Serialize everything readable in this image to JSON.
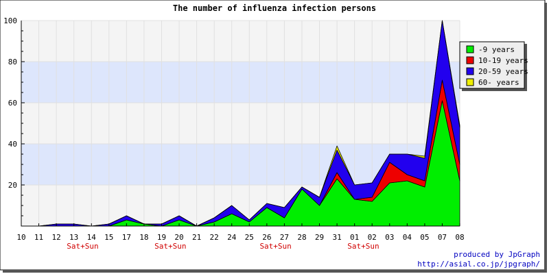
{
  "chart_data": {
    "type": "area",
    "stacked": true,
    "title": "The number of influenza infection persons",
    "categories": [
      "10",
      "11",
      "12",
      "13",
      "14",
      "15",
      "17",
      "18",
      "19",
      "20",
      "21",
      "22",
      "24",
      "25",
      "26",
      "27",
      "28",
      "29",
      "31",
      "01",
      "02",
      "03",
      "04",
      "05",
      "07",
      "08"
    ],
    "series": [
      {
        "name": "-9 years",
        "color": "#00ee00",
        "values": [
          0,
          0,
          0,
          0,
          0,
          0,
          3,
          1,
          0,
          3,
          0,
          2,
          6,
          2,
          9,
          4,
          18,
          10,
          23,
          13,
          12,
          21,
          22,
          19,
          61,
          22
        ]
      },
      {
        "name": "10-19 years",
        "color": "#ee0000",
        "values": [
          0,
          0,
          0,
          0,
          0,
          0,
          0,
          0,
          0,
          0,
          0,
          0,
          0,
          0,
          0,
          0,
          0,
          0,
          3,
          0,
          2,
          10,
          3,
          3,
          10,
          8
        ]
      },
      {
        "name": "20-59 years",
        "color": "#2200ee",
        "values": [
          0,
          0,
          1,
          1,
          0,
          1,
          2,
          0,
          1,
          2,
          0,
          2,
          4,
          1,
          2,
          5,
          1,
          4,
          11,
          7,
          7,
          4,
          10,
          11,
          29,
          18
        ]
      },
      {
        "name": "60- years",
        "color": "#eeee00",
        "values": [
          0,
          0,
          0,
          0,
          0,
          0,
          0,
          0,
          0,
          0,
          0,
          0,
          0,
          0,
          0,
          0,
          0,
          0,
          2,
          0,
          0,
          0,
          0,
          1,
          0,
          1
        ]
      }
    ],
    "ylim": [
      0,
      100
    ],
    "yticks": [
      20,
      40,
      60,
      80,
      100
    ],
    "grid": true,
    "legend_position": "right",
    "weekend_markers": [
      {
        "category": "13",
        "label": "Sat+Sun"
      },
      {
        "category": "19",
        "label": "Sat+Sun"
      },
      {
        "category": "26",
        "label": "Sat+Sun"
      },
      {
        "category": "01",
        "label": "Sat+Sun"
      }
    ],
    "band_colors": {
      "light": "#f4f4f4",
      "blue": "#dde6fc"
    },
    "grid_color": "#e0e0e0"
  },
  "footer": {
    "line1": "produced by JpGraph",
    "line2": "http://asial.co.jp/jpgraph/"
  }
}
